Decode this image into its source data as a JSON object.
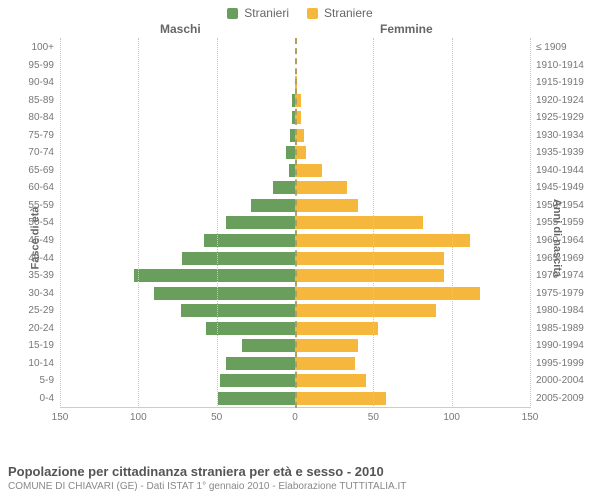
{
  "legend": {
    "male_label": "Stranieri",
    "female_label": "Straniere",
    "male_color": "#6a9e5d",
    "female_color": "#f5b83d"
  },
  "headers": {
    "male": "Maschi",
    "female": "Femmine"
  },
  "axes": {
    "left_title": "Fasce di età",
    "right_title": "Anni di nascita",
    "x_max": 150,
    "x_ticks": [
      150,
      100,
      50,
      0,
      50,
      100,
      150
    ],
    "grid_color": "#c8c8c8",
    "center_color": "#b0a060"
  },
  "pyramid": {
    "type": "population-pyramid",
    "rows": [
      {
        "age": "100+",
        "birth": "≤ 1909",
        "m": 0,
        "f": 0
      },
      {
        "age": "95-99",
        "birth": "1910-1914",
        "m": 0,
        "f": 0
      },
      {
        "age": "90-94",
        "birth": "1915-1919",
        "m": 0,
        "f": 1
      },
      {
        "age": "85-89",
        "birth": "1920-1924",
        "m": 2,
        "f": 4
      },
      {
        "age": "80-84",
        "birth": "1925-1929",
        "m": 2,
        "f": 4
      },
      {
        "age": "75-79",
        "birth": "1930-1934",
        "m": 3,
        "f": 6
      },
      {
        "age": "70-74",
        "birth": "1935-1939",
        "m": 6,
        "f": 7
      },
      {
        "age": "65-69",
        "birth": "1940-1944",
        "m": 4,
        "f": 17
      },
      {
        "age": "60-64",
        "birth": "1945-1949",
        "m": 14,
        "f": 33
      },
      {
        "age": "55-59",
        "birth": "1950-1954",
        "m": 28,
        "f": 40
      },
      {
        "age": "50-54",
        "birth": "1955-1959",
        "m": 44,
        "f": 82
      },
      {
        "age": "45-49",
        "birth": "1960-1964",
        "m": 58,
        "f": 112
      },
      {
        "age": "40-44",
        "birth": "1965-1969",
        "m": 72,
        "f": 95
      },
      {
        "age": "35-39",
        "birth": "1970-1974",
        "m": 103,
        "f": 95
      },
      {
        "age": "30-34",
        "birth": "1975-1979",
        "m": 90,
        "f": 118
      },
      {
        "age": "25-29",
        "birth": "1980-1984",
        "m": 73,
        "f": 90
      },
      {
        "age": "20-24",
        "birth": "1985-1989",
        "m": 57,
        "f": 53
      },
      {
        "age": "15-19",
        "birth": "1990-1994",
        "m": 34,
        "f": 40
      },
      {
        "age": "10-14",
        "birth": "1995-1999",
        "m": 44,
        "f": 38
      },
      {
        "age": "5-9",
        "birth": "2000-2004",
        "m": 48,
        "f": 45
      },
      {
        "age": "0-4",
        "birth": "2005-2009",
        "m": 49,
        "f": 58
      }
    ]
  },
  "footer": {
    "title": "Popolazione per cittadinanza straniera per età e sesso - 2010",
    "subtitle": "COMUNE DI CHIAVARI (GE) - Dati ISTAT 1° gennaio 2010 - Elaborazione TUTTITALIA.IT"
  }
}
